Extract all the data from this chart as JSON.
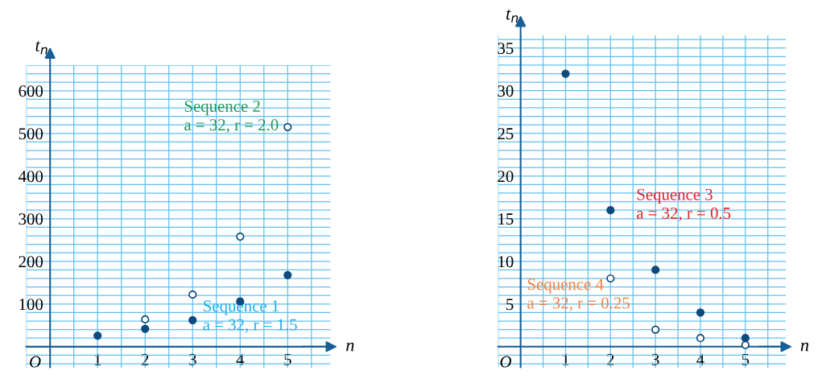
{
  "chart_data": [
    {
      "type": "scatter",
      "xlabel": "n",
      "ylabel": "t$_{n}$",
      "x": [
        1,
        2,
        3,
        4,
        5
      ],
      "ref_lines": [
        {
          "axis": "x",
          "value": 0,
          "color": "#1b5e96"
        }
      ],
      "xlim": [
        -0.5,
        5.9
      ],
      "ylim": [
        -50,
        660
      ],
      "xticks": [
        1,
        2,
        3,
        4,
        5
      ],
      "yticks": [
        100,
        200,
        300,
        400,
        500,
        600
      ],
      "grid": true,
      "marker": "circle",
      "annotations": [
        "O"
      ],
      "series": [
        {
          "name": "Sequence 1\na = 32, r = 1.5",
          "color": "#0d4a7e",
          "values": [
            26,
            42,
            62,
            106,
            168
          ]
        },
        {
          "name": "Sequence 2\na = 32, r = 2.0",
          "color": "#ffffff",
          "values": [
            null,
            64,
            122,
            258,
            515
          ]
        }
      ]
    },
    {
      "type": "scatter",
      "xlabel": "n",
      "ylabel": "t$_{n}$",
      "x": [
        1,
        2,
        3,
        4,
        5
      ],
      "ref_lines": [
        {
          "axis": "x",
          "value": 0,
          "color": "#1b5e96"
        }
      ],
      "xlim": [
        -0.5,
        5.9
      ],
      "ylim": [
        -2.5,
        36.5
      ],
      "xticks": [
        1,
        2,
        3,
        4,
        5
      ],
      "yticks": [
        5,
        10,
        15,
        20,
        25,
        30,
        35
      ],
      "grid": true,
      "marker": "circle",
      "annotations": [
        "O"
      ],
      "series": [
        {
          "name": "Sequence 3\na = 32, r = 0.5",
          "color": "#0d4a7e",
          "values": [
            32,
            16,
            9,
            4,
            1
          ]
        },
        {
          "name": "Sequence 4\na = 32, r = 0.25",
          "color": "#ffffff",
          "values": [
            null,
            8,
            2,
            1,
            0.2
          ]
        }
      ]
    }
  ]
}
